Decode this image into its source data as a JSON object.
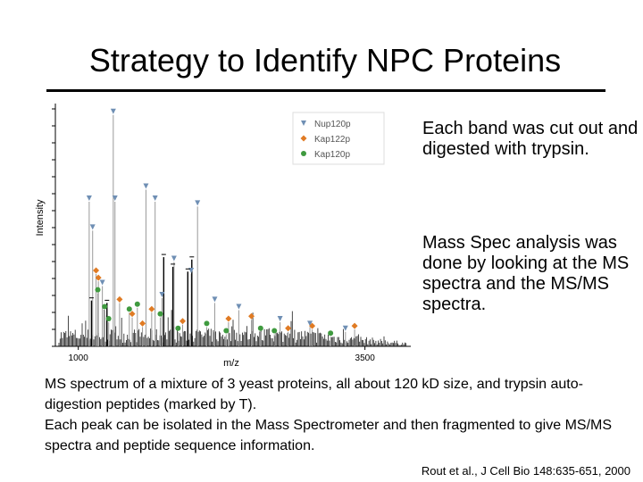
{
  "slide": {
    "title": "Strategy to Identify NPC Proteins",
    "bullets": [
      "Each band was cut out and digested with trypsin.",
      "Mass Spec analysis was done by looking at the MS spectra and the MS/MS spectra."
    ],
    "caption": [
      "MS spectrum of a mixture of 3 yeast proteins, all about 120 kD size, and trypsin auto-digestion peptides (marked by T).",
      "Each peak can be isolated in the Mass Spectrometer and then fragmented to give MS/MS spectra and peptide sequence information."
    ],
    "citation": "Rout et al., J Cell Bio 148:635-651, 2000"
  },
  "chart_data": {
    "type": "bar",
    "title": "",
    "xlabel": "m/z",
    "ylabel": "Intensity",
    "xlim": [
      800,
      3900
    ],
    "ylim": [
      0,
      100
    ],
    "x_ticks": [
      1000,
      3500
    ],
    "grid": false,
    "legend": {
      "position": "top-right",
      "entries": [
        {
          "name": "Nup120p",
          "marker": "triangle-down",
          "color": "#6f8fb4"
        },
        {
          "name": "Kap122p",
          "marker": "diamond",
          "color": "#e07b24"
        },
        {
          "name": "Kap120p",
          "marker": "circle",
          "color": "#3f9a3f"
        }
      ]
    },
    "series": [
      {
        "name": "Nup120p",
        "peaks": [
          [
            1305,
            96
          ],
          [
            1095,
            60
          ],
          [
            1125,
            48
          ],
          [
            1320,
            60
          ],
          [
            1590,
            65
          ],
          [
            1670,
            60
          ],
          [
            2040,
            58
          ],
          [
            1835,
            35
          ],
          [
            1985,
            30
          ],
          [
            1210,
            25
          ],
          [
            1730,
            20
          ],
          [
            2190,
            18
          ],
          [
            2400,
            15
          ],
          [
            2760,
            10
          ],
          [
            3020,
            8
          ],
          [
            3330,
            6
          ]
        ]
      },
      {
        "name": "Kap122p",
        "peaks": [
          [
            1155,
            30
          ],
          [
            1175,
            27
          ],
          [
            1360,
            18
          ],
          [
            1470,
            12
          ],
          [
            1560,
            8
          ],
          [
            1640,
            14
          ],
          [
            1910,
            9
          ],
          [
            2310,
            10
          ],
          [
            2510,
            11
          ],
          [
            2830,
            6
          ],
          [
            3040,
            7
          ],
          [
            3410,
            7
          ]
        ]
      },
      {
        "name": "Kap120p",
        "peaks": [
          [
            1170,
            22
          ],
          [
            1230,
            15
          ],
          [
            1265,
            10
          ],
          [
            1445,
            14
          ],
          [
            1515,
            16
          ],
          [
            1715,
            12
          ],
          [
            1870,
            6
          ],
          [
            2120,
            8
          ],
          [
            2290,
            5
          ],
          [
            2590,
            6
          ],
          [
            2710,
            5
          ],
          [
            3200,
            4
          ]
        ]
      },
      {
        "name": "T",
        "peaks": [
          [
            1115,
            19
          ],
          [
            1250,
            18
          ],
          [
            1745,
            37
          ],
          [
            1825,
            33
          ],
          [
            1955,
            31
          ],
          [
            1990,
            36
          ]
        ]
      }
    ]
  }
}
